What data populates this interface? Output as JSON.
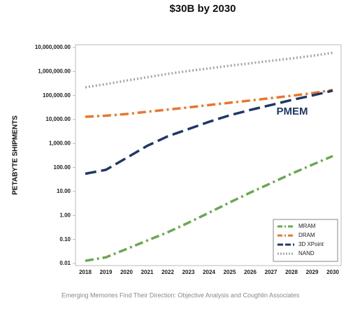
{
  "chart_data": {
    "type": "line",
    "title": "$30B by 2030",
    "y_label": "PETABYTE SHIPMENTS",
    "annotation": "PMEM",
    "caption": "Emerging Memories Find Their Direction: Objective Analysis and Coughlin Associates",
    "log_scale": true,
    "grid": false,
    "legend": "lower right",
    "categories": [
      "2018",
      "2019",
      "2020",
      "2021",
      "2022",
      "2023",
      "2024",
      "2025",
      "2026",
      "2027",
      "2028",
      "2029",
      "2030"
    ],
    "ylim": [
      0.01,
      10000000
    ],
    "yticks": [
      0.01,
      {
        "value": 0.1,
        "label": "0.10"
      },
      {
        "value": 1,
        "label": "1.00"
      },
      {
        "value": 10,
        "label": "10.00"
      },
      {
        "value": 100,
        "label": "100.00"
      },
      {
        "value": 1000,
        "label": "1,000.00"
      },
      {
        "value": 10000,
        "label": "10,000.00"
      },
      {
        "value": 100000,
        "label": "100,000.00"
      },
      {
        "value": 1000000,
        "label": "1,000,000.00"
      },
      {
        "value": 10000000,
        "label": "10,000,000.00"
      }
    ],
    "series": [
      {
        "name": "MRAM",
        "color": "#6aa84f",
        "style": "dashdot",
        "values": [
          0.013,
          0.018,
          0.04,
          0.09,
          0.2,
          0.5,
          1.3,
          3.5,
          9,
          22,
          55,
          130,
          300
        ]
      },
      {
        "name": "DRAM",
        "color": "#e8762c",
        "style": "dashdot",
        "values": [
          13000,
          14500,
          17000,
          21000,
          26000,
          32000,
          40000,
          50000,
          62000,
          78000,
          98000,
          125000,
          170000
        ]
      },
      {
        "name": "3D XPoint",
        "color": "#1f3864",
        "style": "dashed",
        "values": [
          55,
          80,
          250,
          800,
          2000,
          4000,
          8000,
          15000,
          25000,
          40000,
          65000,
          100000,
          160000
        ]
      },
      {
        "name": "NAND",
        "color": "#a6a6a6",
        "style": "dotted",
        "values": [
          220000,
          300000,
          420000,
          580000,
          800000,
          1050000,
          1350000,
          1750000,
          2200000,
          2800000,
          3500000,
          4500000,
          6000000
        ]
      }
    ]
  }
}
